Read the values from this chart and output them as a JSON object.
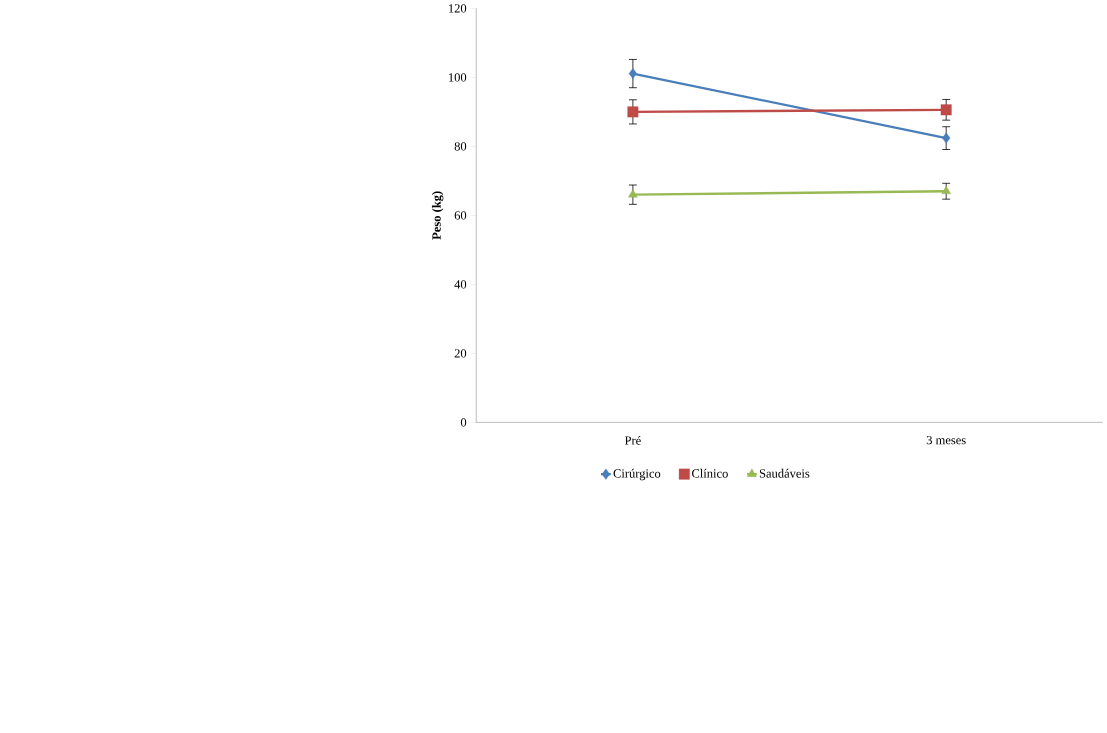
{
  "chart_data": {
    "type": "line",
    "ylabel": "Peso (kg)",
    "categories": [
      "Pré",
      "3 meses"
    ],
    "series": [
      {
        "name": "Cirúrgico",
        "color": "#4a7ebb",
        "marker": "diamond",
        "values": [
          101.1,
          82.4
        ],
        "errors": [
          4.1,
          3.3
        ]
      },
      {
        "name": "Clínico",
        "color": "#be4b48",
        "marker": "square",
        "values": [
          90.0,
          90.6
        ],
        "errors": [
          3.5,
          3.0
        ]
      },
      {
        "name": "Saudáveis",
        "color": "#98b954",
        "marker": "triangle",
        "values": [
          66.0,
          67.0
        ],
        "errors": [
          2.8,
          2.3
        ]
      }
    ],
    "ylim": [
      0,
      120
    ],
    "yticks": [
      0,
      20,
      40,
      60,
      80,
      100,
      120
    ],
    "grid": false,
    "legend": "bottom",
    "line_style": "solid"
  }
}
